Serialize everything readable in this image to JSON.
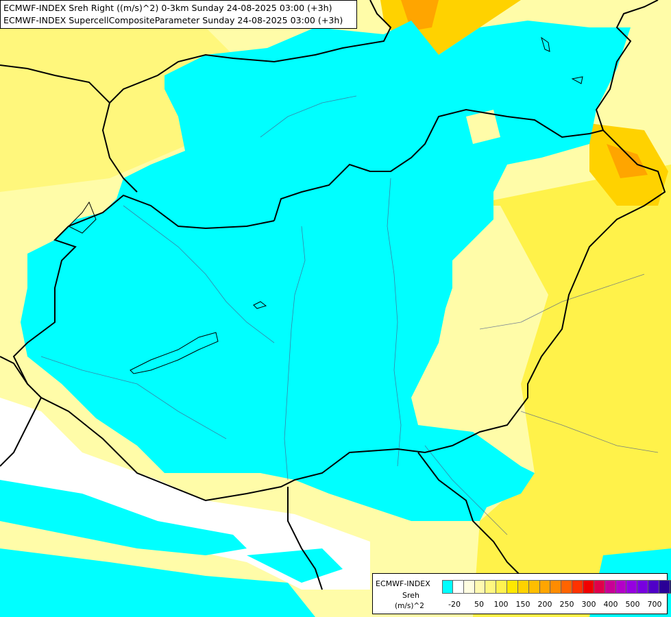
{
  "title": {
    "line1": "ECMWF-INDEX Sreh Right ((m/s)^2) 0-3km Sunday 24-08-2025 03:00 (+3h)",
    "line2": "ECMWF-INDEX SupercellCompositeParameter Sunday 24-08-2025 03:00 (+3h)"
  },
  "legend": {
    "name": "ECMWF-INDEX",
    "parameter": "Sreh",
    "unit": "(m/s)^2",
    "colors": [
      "#00ffff",
      "#ffffff",
      "#fffde0",
      "#fff9b0",
      "#fff780",
      "#fff250",
      "#ffe800",
      "#ffd200",
      "#ffbe00",
      "#ffa500",
      "#ff8c00",
      "#ff6400",
      "#ff3200",
      "#f00000",
      "#e0004b",
      "#c80096",
      "#b400c8",
      "#9600e0",
      "#7800e0",
      "#5000c8",
      "#2a0096",
      "#00006e"
    ],
    "ticks": [
      "-20",
      "50",
      "100",
      "150",
      "200",
      "250",
      "300",
      "400",
      "500",
      "700"
    ]
  }
}
